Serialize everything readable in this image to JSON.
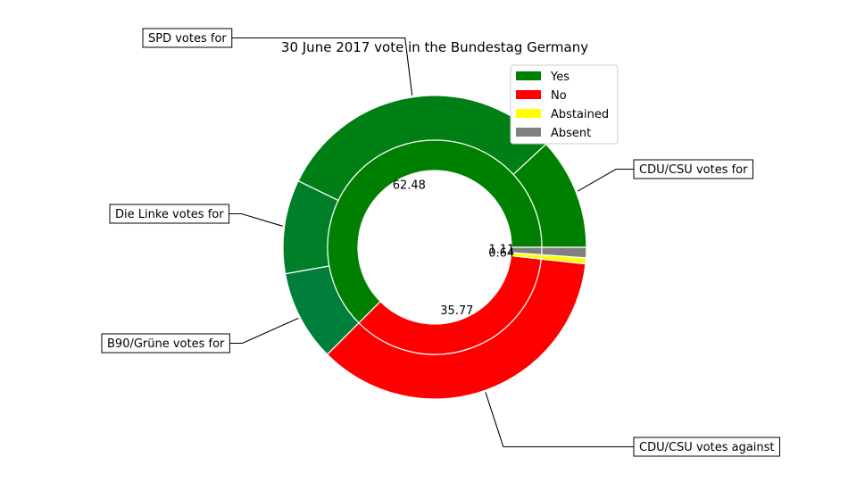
{
  "chart_data": {
    "type": "pie",
    "title": "30 June 2017 vote in the Bundestag Germany",
    "inner_ring": {
      "categories": [
        "Yes",
        "No",
        "Abstained",
        "Absent"
      ],
      "values": [
        62.48,
        35.77,
        0.64,
        1.11
      ],
      "labels": [
        "62.48",
        "35.77",
        "0.64",
        "1.11"
      ]
    },
    "outer_ring": {
      "parties": [
        "CDU/CSU",
        "SPD",
        "Die Linke",
        "B90/Grüne",
        "CDU/CSU",
        "CDU/CSU",
        "CDU/CSU"
      ],
      "votes": [
        "Yes",
        "Yes",
        "Yes",
        "Yes",
        "No",
        "Abstained",
        "Absent"
      ],
      "values": [
        11.9,
        30.9,
        10.0,
        9.68,
        35.77,
        0.64,
        1.11
      ]
    },
    "legend": {
      "position": "upper-right",
      "entries": [
        {
          "label": "Yes",
          "color": "#008000"
        },
        {
          "label": "No",
          "color": "#ff0000"
        },
        {
          "label": "Abstained",
          "color": "#ffff00"
        },
        {
          "label": "Absent",
          "color": "#808080"
        }
      ]
    },
    "annotations": [
      "CDU/CSU votes for",
      "SPD votes for",
      "Die Linke votes for",
      "B90/Grüne votes for",
      "CDU/CSU votes against"
    ],
    "colors": {
      "yes": "#008000",
      "no": "#ff0000",
      "abstained": "#ffff00",
      "absent": "#808080",
      "outer_yes": [
        "#008000",
        "#007f14",
        "#007f28",
        "#007f3c"
      ]
    }
  }
}
